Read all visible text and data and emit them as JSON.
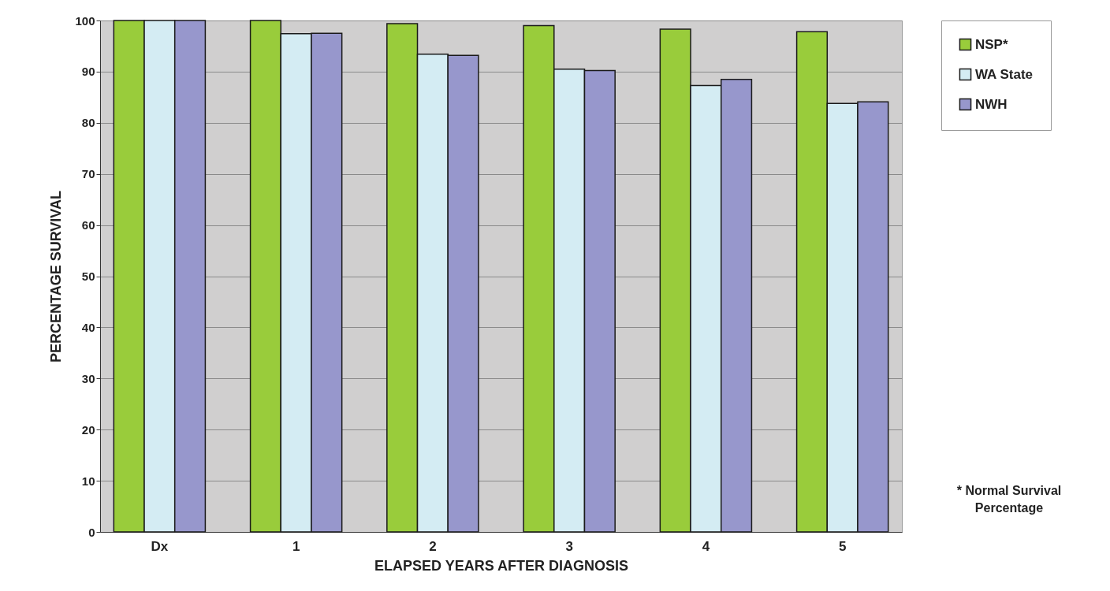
{
  "chart_data": {
    "type": "bar",
    "xlabel": "ELAPSED YEARS AFTER DIAGNOSIS",
    "ylabel": "PERCENTAGE SURVIVAL",
    "categories": [
      "Dx",
      "1",
      "2",
      "3",
      "4",
      "5"
    ],
    "series": [
      {
        "name": "NSP*",
        "color": "#99cc3b",
        "values": [
          100,
          100,
          99.4,
          99.0,
          98.3,
          97.8
        ]
      },
      {
        "name": "WA State",
        "color": "#d4ecf3",
        "values": [
          100,
          97.4,
          93.4,
          90.5,
          87.3,
          83.8
        ]
      },
      {
        "name": "NWH",
        "color": "#9797cc",
        "values": [
          100,
          97.5,
          93.2,
          90.2,
          88.5,
          84.1
        ]
      }
    ],
    "ylim": [
      0,
      100
    ],
    "yticks": [
      0,
      10,
      20,
      30,
      40,
      50,
      60,
      70,
      80,
      90,
      100
    ],
    "grid": "y",
    "legend": "right",
    "annotations": [
      "* Normal Survival Percentage"
    ]
  }
}
